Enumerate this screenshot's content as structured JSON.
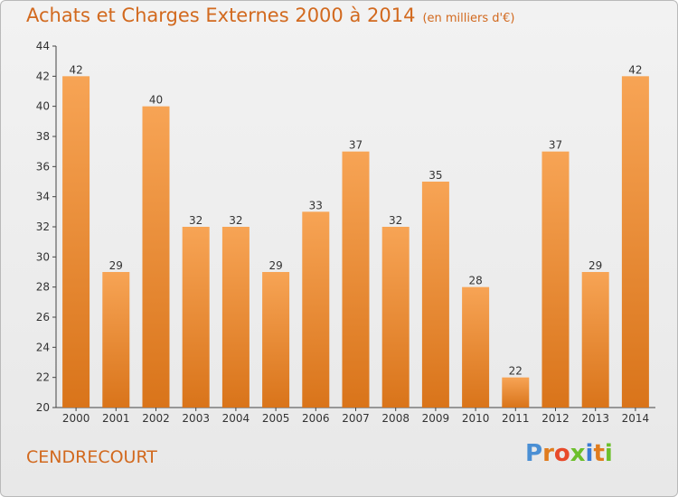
{
  "header": {
    "title": "Achats et Charges Externes 2000 à 2014",
    "subtitle": "(en milliers d'€)"
  },
  "footer": {
    "town": "CENDRECOURT",
    "logo_text": "Proxiti",
    "logo_colors": [
      "#4a8fd4",
      "#e07c1e",
      "#e84a2a",
      "#6cbf2b",
      "#3a7bd5",
      "#e07c1e",
      "#6cbf2b"
    ]
  },
  "colors": {
    "bar_light": "#f7a455",
    "bar_dark": "#d9741a",
    "axis_text": "#333333",
    "title": "#d2691e"
  },
  "chart_data": {
    "type": "bar",
    "title": "Achats et Charges Externes 2000 à 2014",
    "subtitle": "(en milliers d'€)",
    "categories": [
      "2000",
      "2001",
      "2002",
      "2003",
      "2004",
      "2005",
      "2006",
      "2007",
      "2008",
      "2009",
      "2010",
      "2011",
      "2012",
      "2013",
      "2014"
    ],
    "values": [
      42,
      29,
      40,
      32,
      32,
      29,
      33,
      37,
      32,
      35,
      28,
      22,
      37,
      29,
      42
    ],
    "ylim": [
      20,
      44
    ],
    "yticks": [
      20,
      22,
      24,
      26,
      28,
      30,
      32,
      34,
      36,
      38,
      40,
      42,
      44
    ],
    "grid": false,
    "data_labels": true
  }
}
